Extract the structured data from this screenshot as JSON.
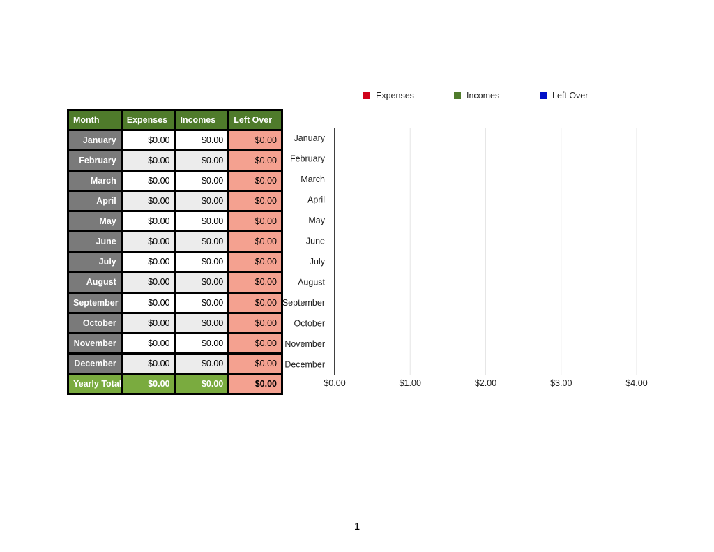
{
  "table": {
    "headers": [
      "Month",
      "Expenses",
      "Incomes",
      "Left Over"
    ],
    "rows": [
      {
        "month": "January",
        "expenses": "$0.00",
        "incomes": "$0.00",
        "left_over": "$0.00"
      },
      {
        "month": "February",
        "expenses": "$0.00",
        "incomes": "$0.00",
        "left_over": "$0.00"
      },
      {
        "month": "March",
        "expenses": "$0.00",
        "incomes": "$0.00",
        "left_over": "$0.00"
      },
      {
        "month": "April",
        "expenses": "$0.00",
        "incomes": "$0.00",
        "left_over": "$0.00"
      },
      {
        "month": "May",
        "expenses": "$0.00",
        "incomes": "$0.00",
        "left_over": "$0.00"
      },
      {
        "month": "June",
        "expenses": "$0.00",
        "incomes": "$0.00",
        "left_over": "$0.00"
      },
      {
        "month": "July",
        "expenses": "$0.00",
        "incomes": "$0.00",
        "left_over": "$0.00"
      },
      {
        "month": "August",
        "expenses": "$0.00",
        "incomes": "$0.00",
        "left_over": "$0.00"
      },
      {
        "month": "September",
        "expenses": "$0.00",
        "incomes": "$0.00",
        "left_over": "$0.00"
      },
      {
        "month": "October",
        "expenses": "$0.00",
        "incomes": "$0.00",
        "left_over": "$0.00"
      },
      {
        "month": "November",
        "expenses": "$0.00",
        "incomes": "$0.00",
        "left_over": "$0.00"
      },
      {
        "month": "December",
        "expenses": "$0.00",
        "incomes": "$0.00",
        "left_over": "$0.00"
      }
    ],
    "totals": {
      "label": "Yearly Totals",
      "expenses": "$0.00",
      "incomes": "$0.00",
      "left_over": "$0.00"
    }
  },
  "colors": {
    "expenses": "#d0021b",
    "incomes": "#4f7b2b",
    "left_over": "#0010c8",
    "header_green": "#4f7b2b",
    "totals_green": "#7aab3f",
    "month_gray": "#7a7a7a",
    "left_over_salmon": "#f4a190"
  },
  "chart_data": {
    "type": "bar",
    "orientation": "horizontal",
    "categories": [
      "January",
      "February",
      "March",
      "April",
      "May",
      "June",
      "July",
      "August",
      "September",
      "October",
      "November",
      "December"
    ],
    "series": [
      {
        "name": "Expenses",
        "values": [
          0,
          0,
          0,
          0,
          0,
          0,
          0,
          0,
          0,
          0,
          0,
          0
        ]
      },
      {
        "name": "Incomes",
        "values": [
          0,
          0,
          0,
          0,
          0,
          0,
          0,
          0,
          0,
          0,
          0,
          0
        ]
      },
      {
        "name": "Left Over",
        "values": [
          0,
          0,
          0,
          0,
          0,
          0,
          0,
          0,
          0,
          0,
          0,
          0
        ]
      }
    ],
    "x_ticks": [
      "$0.00",
      "$1.00",
      "$2.00",
      "$3.00",
      "$4.00"
    ],
    "xlim": [
      0,
      4
    ],
    "grid": true,
    "legend_position": "top"
  },
  "page_number": "1"
}
